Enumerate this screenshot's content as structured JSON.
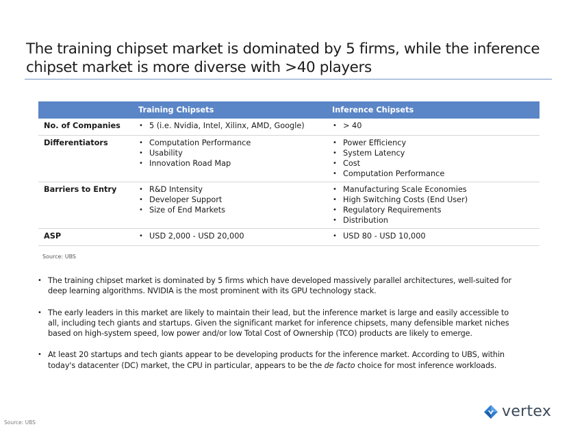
{
  "title": "The training chipset market is dominated by 5 firms, while the inference chipset market is more diverse with >40 players",
  "table": {
    "headers": [
      "",
      "Training Chipsets",
      "Inference Chipsets"
    ],
    "rows": [
      {
        "label": "No. of Companies",
        "training": [
          "5 (i.e. Nvidia, Intel, Xilinx, AMD, Google)"
        ],
        "inference": [
          "> 40"
        ]
      },
      {
        "label": "Differentiators",
        "training": [
          "Computation Performance",
          "Usability",
          "Innovation Road Map"
        ],
        "inference": [
          "Power Efficiency",
          "System Latency",
          "Cost",
          "Computation Performance"
        ]
      },
      {
        "label": "Barriers to Entry",
        "training": [
          "R&D Intensity",
          "Developer Support",
          "Size of End Markets"
        ],
        "inference": [
          "Manufacturing Scale Economies",
          "High Switching Costs (End User)",
          "Regulatory Requirements",
          "Distribution"
        ]
      },
      {
        "label": "ASP",
        "training": [
          "USD 2,000 - USD 20,000"
        ],
        "inference": [
          "USD 80 - USD 10,000"
        ]
      }
    ],
    "source": "Source: UBS"
  },
  "notes": {
    "b1": "The training chipset market is dominated by 5 firms which have developed massively parallel architectures, well-suited for deep learning algorithms. NVIDIA is the most prominent with its GPU technology stack.",
    "b2": "The early leaders in this market are likely to maintain their lead, but the inference market is large and easily accessible to all, including tech giants and startups. Given the significant market for inference chipsets, many defensible market niches based on high-system speed, low power and/or low Total Cost of Ownership (TCO) products are likely to emerge.",
    "b3_pre": "At least 20 startups and tech giants appear to be developing products for the inference market. According to UBS, within today's datacenter (DC) market, the CPU in particular, appears to be the ",
    "b3_em": "de facto",
    "b3_post": " choice for most inference workloads."
  },
  "footer": {
    "source": "Source: UBS",
    "logo_text": "vertex",
    "logo_icon": "vertex-diamond-icon"
  },
  "colors": {
    "header_fill": "#5a85c6",
    "title_rule": "#6f94c6",
    "logo_blue": "#2f7fd1"
  }
}
